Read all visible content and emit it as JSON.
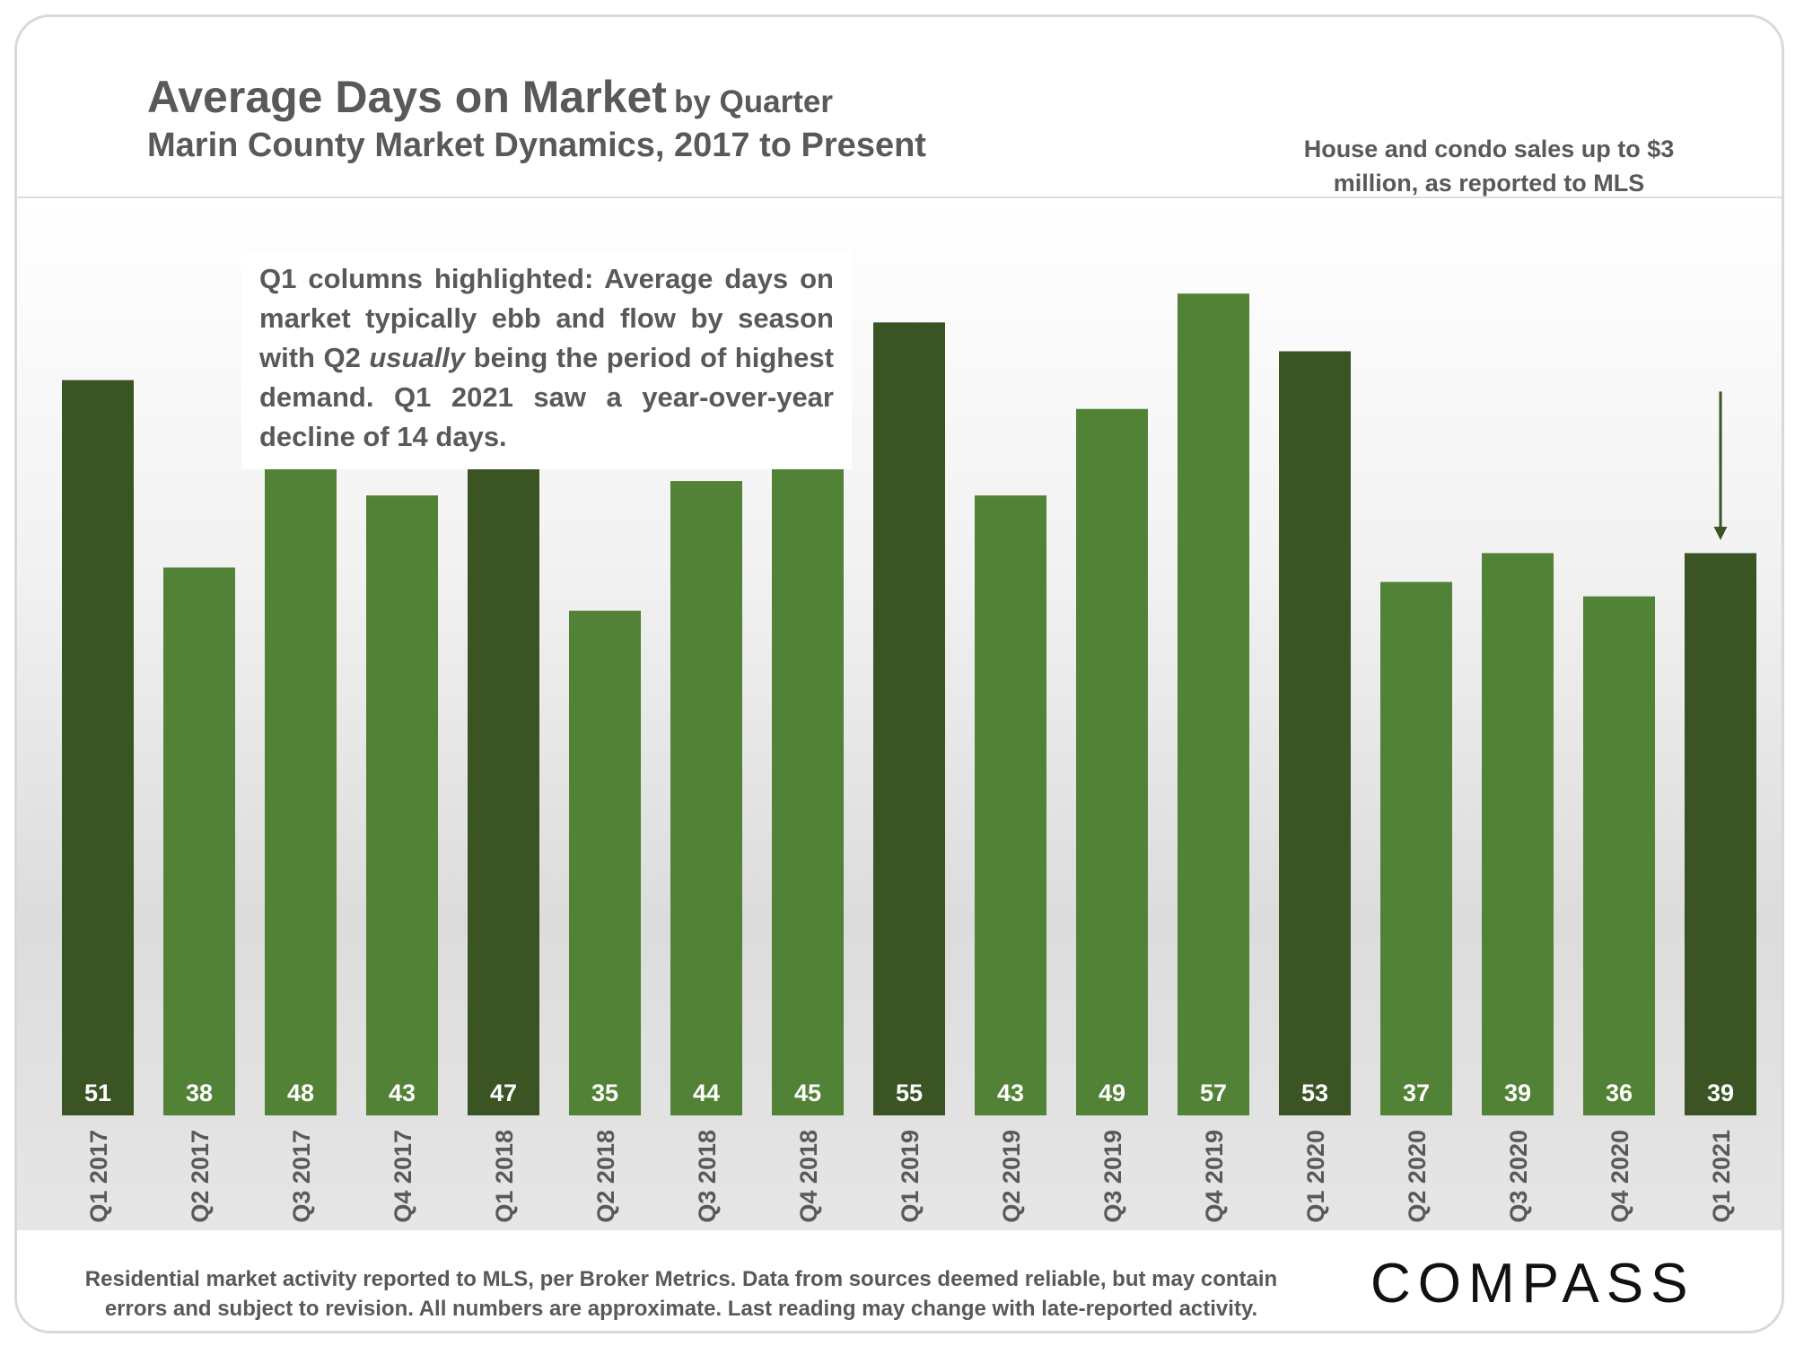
{
  "header": {
    "title_main": "Average Days on Market",
    "title_suffix": "by Quarter",
    "subtitle": "Marin County Market Dynamics, 2017 to Present",
    "note": "House and condo sales up to $3 million, as reported to MLS"
  },
  "callout": {
    "before": "Q1 columns highlighted: Average days on market typically ebb and flow by season with Q2 ",
    "emphasis": "usually",
    "after": " being the period of highest demand. Q1 2021 saw a year-over-year decline of 14 days."
  },
  "footer": {
    "source": "Residential market activity reported to MLS, per Broker Metrics. Data from sources deemed reliable, but may contain errors and subject to revision. All numbers are approximate. Last reading may change with late-reported activity.",
    "logo": "COMPASS"
  },
  "colors": {
    "q1_bar": "#3a5424",
    "other_bar": "#528236",
    "label_text": "#ffffff",
    "tick_text": "#595959",
    "arrow": "#3a5424"
  },
  "chart_data": {
    "type": "bar",
    "title": "Average Days on Market",
    "categories": [
      "Q1 2017",
      "Q2 2017",
      "Q3 2017",
      "Q4 2017",
      "Q1 2018",
      "Q2 2018",
      "Q3 2018",
      "Q4 2018",
      "Q1 2019",
      "Q2 2019",
      "Q3 2019",
      "Q4 2019",
      "Q1 2020",
      "Q2 2020",
      "Q3 2020",
      "Q4 2020",
      "Q1 2021"
    ],
    "values": [
      51,
      38,
      48,
      43,
      47,
      35,
      44,
      45,
      55,
      43,
      49,
      57,
      53,
      37,
      39,
      36,
      39
    ],
    "highlighted": [
      true,
      false,
      false,
      false,
      true,
      false,
      false,
      false,
      true,
      false,
      false,
      false,
      true,
      false,
      false,
      false,
      true
    ],
    "xlabel": "",
    "ylabel": "",
    "ylim": [
      0,
      60
    ],
    "grid": false,
    "data_labels": true,
    "annotations": [
      {
        "type": "arrow",
        "category": "Q1 2021"
      }
    ]
  }
}
